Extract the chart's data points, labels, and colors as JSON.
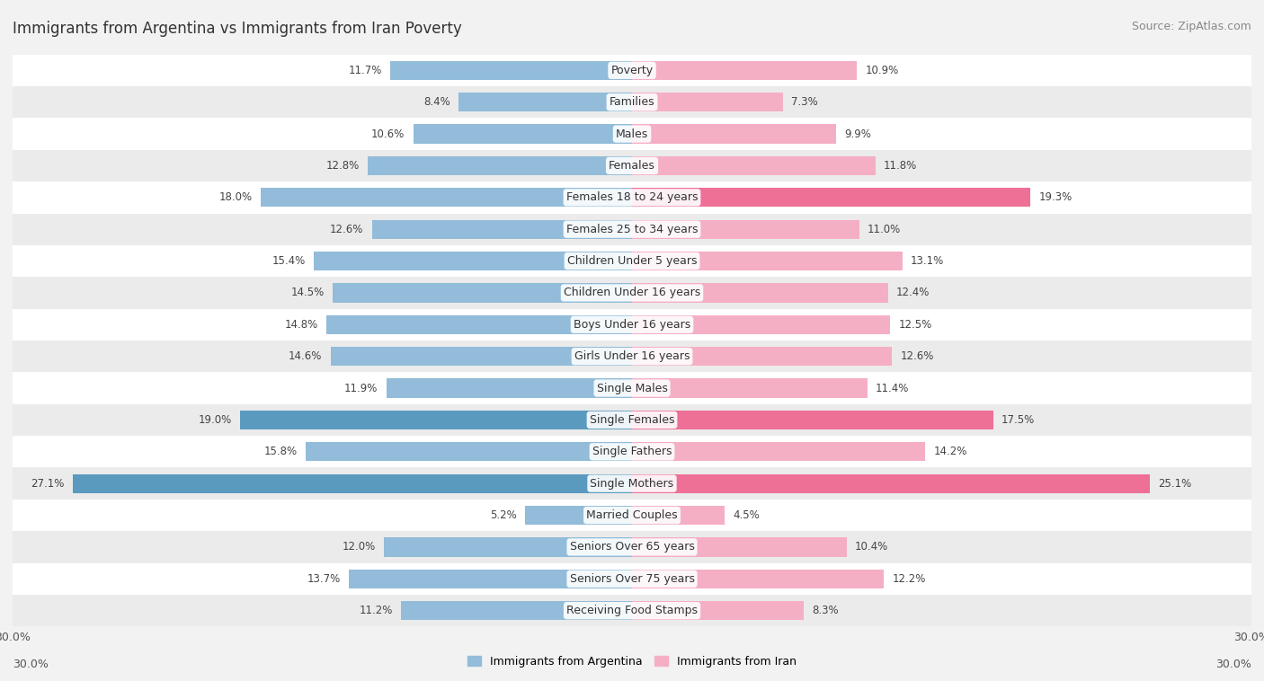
{
  "title": "Immigrants from Argentina vs Immigrants from Iran Poverty",
  "source": "Source: ZipAtlas.com",
  "categories": [
    "Poverty",
    "Families",
    "Males",
    "Females",
    "Females 18 to 24 years",
    "Females 25 to 34 years",
    "Children Under 5 years",
    "Children Under 16 years",
    "Boys Under 16 years",
    "Girls Under 16 years",
    "Single Males",
    "Single Females",
    "Single Fathers",
    "Single Mothers",
    "Married Couples",
    "Seniors Over 65 years",
    "Seniors Over 75 years",
    "Receiving Food Stamps"
  ],
  "argentina_values": [
    11.7,
    8.4,
    10.6,
    12.8,
    18.0,
    12.6,
    15.4,
    14.5,
    14.8,
    14.6,
    11.9,
    19.0,
    15.8,
    27.1,
    5.2,
    12.0,
    13.7,
    11.2
  ],
  "iran_values": [
    10.9,
    7.3,
    9.9,
    11.8,
    19.3,
    11.0,
    13.1,
    12.4,
    12.5,
    12.6,
    11.4,
    17.5,
    14.2,
    25.1,
    4.5,
    10.4,
    12.2,
    8.3
  ],
  "argentina_color": "#92bcd9",
  "iran_color": "#f5afc4",
  "argentina_highlight_color": "#5a9abf",
  "iran_highlight_color": "#ee7096",
  "highlight_rows_argentina": [
    "Single Females",
    "Single Mothers"
  ],
  "highlight_rows_iran": [
    "Single Females",
    "Single Mothers",
    "Females 18 to 24 years"
  ],
  "background_color": "#f2f2f2",
  "row_bg_light": "#ffffff",
  "row_bg_dark": "#ebebeb",
  "axis_limit": 30.0,
  "bar_height": 0.6,
  "legend_argentina": "Immigrants from Argentina",
  "legend_iran": "Immigrants from Iran",
  "title_fontsize": 12,
  "source_fontsize": 9,
  "label_fontsize": 9,
  "value_fontsize": 8.5
}
